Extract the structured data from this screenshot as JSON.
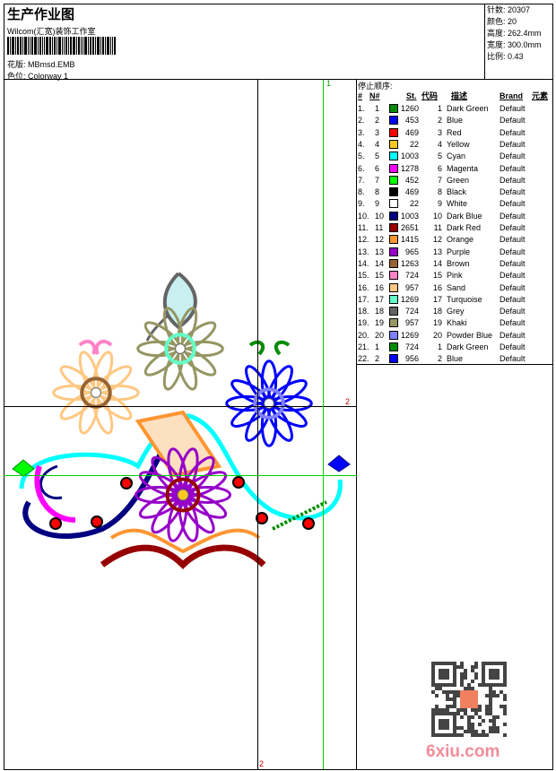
{
  "header": {
    "title": "生产作业图",
    "company": "Wilcom(汇宽)装饰工作室",
    "pattern_label": "花版:",
    "pattern": "MBmsd.EMB",
    "colorway_label": "色位:",
    "colorway": "Colorway 1"
  },
  "info": {
    "stitches_label": "针数:",
    "stitches": "20307",
    "colors_label": "颜色:",
    "colors": "20",
    "height_label": "高度:",
    "height": "262.4mm",
    "width_label": "宽度:",
    "width": "300.0mm",
    "scale_label": "比例:",
    "scale": "0.43"
  },
  "table": {
    "title": "停止顺序:",
    "headers": [
      "#",
      "N#",
      "St.",
      "代码",
      "描述",
      "Brand",
      "元素"
    ],
    "rows": [
      [
        "1.",
        "1",
        "#008c00",
        "1260",
        "1",
        "Dark Green",
        "Default"
      ],
      [
        "2.",
        "2",
        "#0000ff",
        "453",
        "2",
        "Blue",
        "Default"
      ],
      [
        "3.",
        "3",
        "#ff0000",
        "469",
        "3",
        "Red",
        "Default"
      ],
      [
        "4.",
        "4",
        "#ffc820",
        "22",
        "4",
        "Yellow",
        "Default"
      ],
      [
        "5.",
        "5",
        "#00ffff",
        "1003",
        "5",
        "Cyan",
        "Default"
      ],
      [
        "6.",
        "6",
        "#ff00ff",
        "1278",
        "6",
        "Magenta",
        "Default"
      ],
      [
        "7.",
        "7",
        "#00ff00",
        "452",
        "7",
        "Green",
        "Default"
      ],
      [
        "8.",
        "8",
        "#000000",
        "469",
        "8",
        "Black",
        "Default"
      ],
      [
        "9.",
        "9",
        "#ffffff",
        "22",
        "9",
        "White",
        "Default"
      ],
      [
        "10.",
        "10",
        "#000080",
        "1003",
        "10",
        "Dark Blue",
        "Default"
      ],
      [
        "11.",
        "11",
        "#960000",
        "2651",
        "11",
        "Dark Red",
        "Default"
      ],
      [
        "12.",
        "12",
        "#ff9632",
        "1415",
        "12",
        "Orange",
        "Default"
      ],
      [
        "13.",
        "13",
        "#9600c8",
        "965",
        "13",
        "Purple",
        "Default"
      ],
      [
        "14.",
        "14",
        "#966432",
        "1263",
        "14",
        "Brown",
        "Default"
      ],
      [
        "15.",
        "15",
        "#ff82c8",
        "724",
        "15",
        "Pink",
        "Default"
      ],
      [
        "16.",
        "16",
        "#ffc882",
        "957",
        "16",
        "Sand",
        "Default"
      ],
      [
        "17.",
        "17",
        "#64ffc8",
        "1269",
        "17",
        "Turquoise",
        "Default"
      ],
      [
        "18.",
        "18",
        "#646464",
        "724",
        "18",
        "Grey",
        "Default"
      ],
      [
        "19.",
        "19",
        "#969664",
        "957",
        "19",
        "Khaki",
        "Default"
      ],
      [
        "20.",
        "20",
        "#8080ff",
        "1269",
        "20",
        "Powder Blue",
        "Default"
      ],
      [
        "21.",
        "1",
        "#008c00",
        "724",
        "1",
        "Dark Green",
        "Default"
      ],
      [
        "22.",
        "2",
        "#0000ff",
        "956",
        "2",
        "Blue",
        "Default"
      ]
    ]
  },
  "markers": {
    "green_label": "1",
    "v_label": "2",
    "h_label": "2"
  },
  "watermark": "6xiu.com"
}
